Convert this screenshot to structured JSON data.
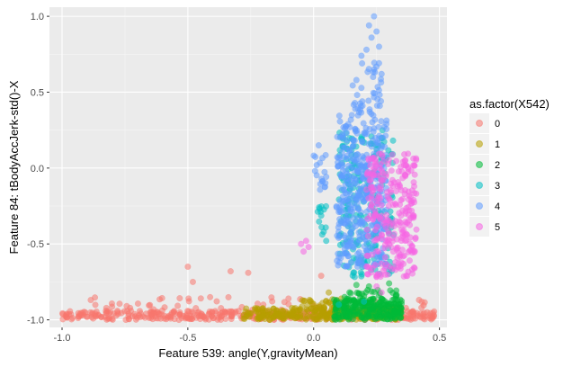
{
  "chart_data": {
    "type": "scatter",
    "title": "",
    "xlabel": "Feature 539: angle(Y,gravityMean)",
    "ylabel": "Feature 84: tBodyAccJerk-std()-X",
    "xlim": [
      -1.05,
      0.53
    ],
    "ylim": [
      -1.05,
      1.06
    ],
    "x_ticks": [
      -1.0,
      -0.5,
      0.0,
      0.5
    ],
    "x_tick_labels": [
      "-1.0",
      "-0.5",
      "0.0",
      "0.5"
    ],
    "y_ticks": [
      -1.0,
      -0.5,
      0.0,
      0.5,
      1.0
    ],
    "y_tick_labels": [
      "-1.0",
      "-0.5",
      "0.0",
      "0.5",
      "1.0"
    ],
    "grid": true,
    "legend_position": "right",
    "legend_title": "as.factor(X542)",
    "point_opacity": 0.55,
    "series": [
      {
        "name": "0",
        "color": "#F8766D",
        "clusters": [
          {
            "x_range": [
              -1.0,
              0.48
            ],
            "y_range": [
              -1.0,
              -0.94
            ],
            "count": 420
          },
          {
            "x_range": [
              -0.9,
              0.45
            ],
            "y_range": [
              -0.94,
              -0.85
            ],
            "count": 55
          }
        ],
        "points": [
          [
            -0.5,
            -0.65
          ],
          [
            -0.33,
            -0.68
          ],
          [
            -0.26,
            -0.69
          ],
          [
            -0.48,
            -0.75
          ],
          [
            0.03,
            -0.71
          ],
          [
            -0.1,
            -0.86
          ],
          [
            -0.2,
            -0.9
          ],
          [
            0.47,
            -0.99
          ]
        ]
      },
      {
        "name": "1",
        "color": "#B79F00",
        "clusters": [
          {
            "x_range": [
              -0.28,
              0.35
            ],
            "y_range": [
              -1.0,
              -0.92
            ],
            "count": 300
          },
          {
            "x_range": [
              -0.05,
              0.1
            ],
            "y_range": [
              -0.92,
              -0.85
            ],
            "count": 25
          }
        ],
        "points": [
          [
            0.06,
            -0.82
          ],
          [
            0.11,
            -0.86
          ]
        ]
      },
      {
        "name": "2",
        "color": "#00BA38",
        "clusters": [
          {
            "x_range": [
              0.08,
              0.35
            ],
            "y_range": [
              -1.0,
              -0.86
            ],
            "count": 240
          },
          {
            "x_range": [
              0.12,
              0.33
            ],
            "y_range": [
              -0.9,
              -0.8
            ],
            "count": 40
          }
        ],
        "points": [
          [
            0.22,
            -0.78
          ],
          [
            0.3,
            -0.76
          ],
          [
            0.17,
            -0.77
          ]
        ]
      },
      {
        "name": "3",
        "color": "#00BFC4",
        "clusters": [
          {
            "x_range": [
              0.1,
              0.32
            ],
            "y_range": [
              -0.72,
              0.25
            ],
            "count": 230
          },
          {
            "x_range": [
              0.01,
              0.05
            ],
            "y_range": [
              -0.45,
              -0.25
            ],
            "count": 12
          }
        ],
        "points": [
          [
            0.1,
            -0.9
          ],
          [
            0.2,
            -0.88
          ],
          [
            0.05,
            -0.48
          ],
          [
            0.04,
            -0.42
          ]
        ]
      },
      {
        "name": "4",
        "color": "#619CFF",
        "clusters": [
          {
            "x_range": [
              0.09,
              0.29
            ],
            "y_range": [
              -0.65,
              0.35
            ],
            "count": 380
          },
          {
            "x_range": [
              0.15,
              0.27
            ],
            "y_range": [
              0.35,
              0.7
            ],
            "count": 40
          },
          {
            "x_range": [
              0.0,
              0.05
            ],
            "y_range": [
              -0.15,
              0.1
            ],
            "count": 18
          }
        ],
        "points": [
          [
            0.24,
            1.0
          ],
          [
            0.22,
            0.94
          ],
          [
            0.23,
            0.86
          ],
          [
            0.25,
            0.9
          ],
          [
            0.21,
            0.78
          ],
          [
            0.19,
            0.74
          ],
          [
            0.26,
            0.8
          ],
          [
            0.02,
            0.15
          ],
          [
            0.27,
            0.62
          ],
          [
            0.17,
            0.58
          ]
        ]
      },
      {
        "name": "5",
        "color": "#F564E3",
        "clusters": [
          {
            "x_range": [
              0.21,
              0.41
            ],
            "y_range": [
              -0.72,
              0.1
            ],
            "count": 280
          }
        ],
        "points": [
          [
            -0.05,
            -0.5
          ],
          [
            -0.04,
            -0.55
          ],
          [
            -0.03,
            -0.48
          ],
          [
            -0.02,
            -0.52
          ],
          [
            0.25,
            -0.78
          ],
          [
            0.27,
            -0.82
          ]
        ]
      }
    ]
  }
}
